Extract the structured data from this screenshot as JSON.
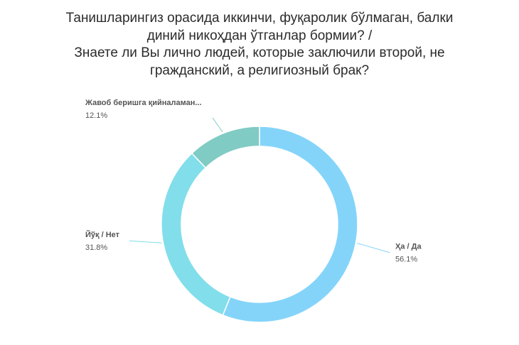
{
  "chart_data": {
    "type": "pie",
    "title_lines": [
      "Танишларингиз орасида иккинчи, фуқаролик бўлмаган, балки",
      "диний никоҳдан ўтганлар бормии? /",
      "Знаете ли Вы лично людей, которые заключили второй, не",
      "гражданский, а религиозный брак?"
    ],
    "slices": [
      {
        "label": "Ҳа / Да",
        "value": 56.1,
        "value_label": "56.1%",
        "color": "#84d4fa"
      },
      {
        "label": "Йўқ / Нет",
        "value": 31.8,
        "value_label": "31.8%",
        "color": "#82deea"
      },
      {
        "label": "Жавоб беришга қийналаман...",
        "value": 12.1,
        "value_label": "12.1%",
        "color": "#80cbc4"
      }
    ],
    "legend": "none",
    "donut": true
  }
}
